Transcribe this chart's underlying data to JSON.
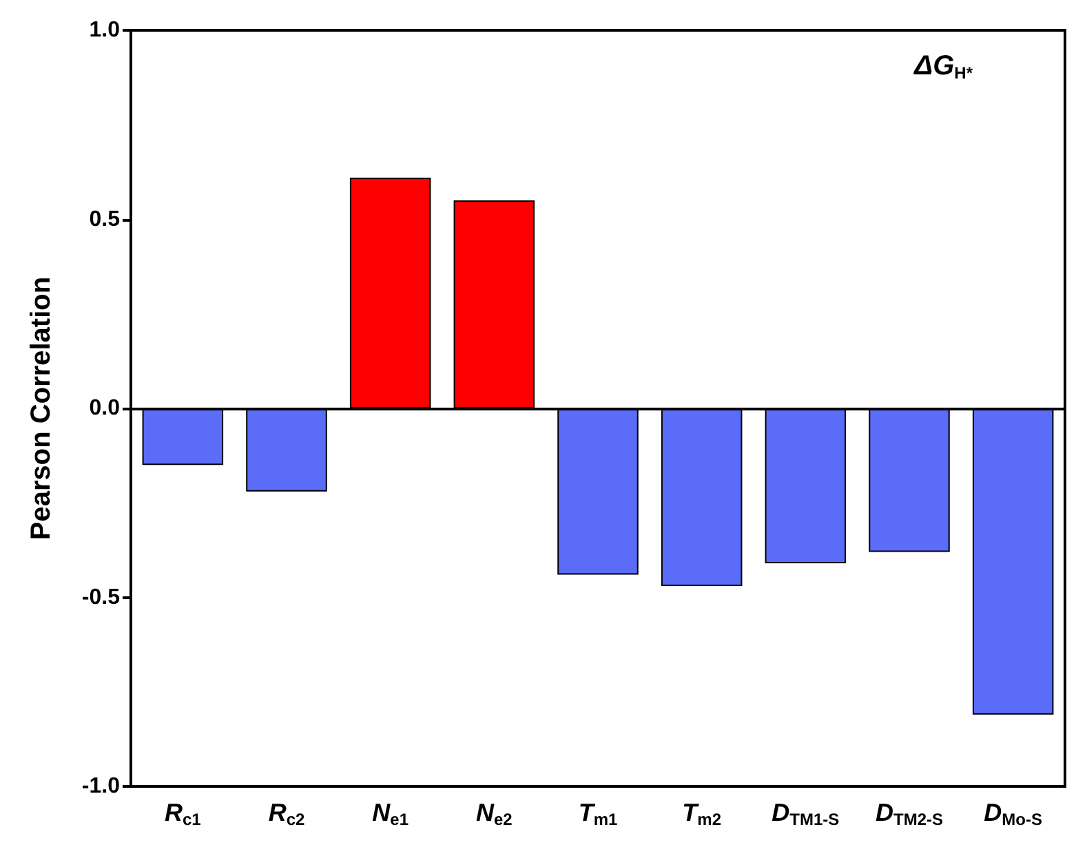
{
  "chart_data": {
    "type": "bar",
    "title": "ΔG$_{H*}$",
    "ylabel": "Pearson Correlation",
    "categories": [
      "R$_{c1}$",
      "R$_{c2}$",
      "N$_{e1}$",
      "N$_{e2}$",
      "T$_{m1}$",
      "T$_{m2}$",
      "D$_{TM1-S}$",
      "D$_{TM2-S}$",
      "D$_{Mo-S}$"
    ],
    "values": [
      -0.15,
      -0.22,
      0.61,
      0.55,
      -0.44,
      -0.47,
      -0.41,
      -0.38,
      -0.81
    ],
    "colors": [
      "#5b6cf8",
      "#5b6cf8",
      "#ff0000",
      "#ff0000",
      "#5b6cf8",
      "#5b6cf8",
      "#5b6cf8",
      "#5b6cf8",
      "#5b6cf8"
    ],
    "ylim": [
      -1,
      1
    ],
    "yticks": [
      {
        "value": -1,
        "label": "-1.0"
      },
      {
        "value": -0.5,
        "label": "-0.5"
      },
      {
        "value": 0,
        "label": "0.0"
      },
      {
        "value": 0.5,
        "label": "0.5"
      },
      {
        "value": 1,
        "label": "1.0"
      }
    ],
    "ref_lines": [
      {
        "axis": "y",
        "value": 0,
        "color": "#000000"
      }
    ],
    "grid": false
  }
}
